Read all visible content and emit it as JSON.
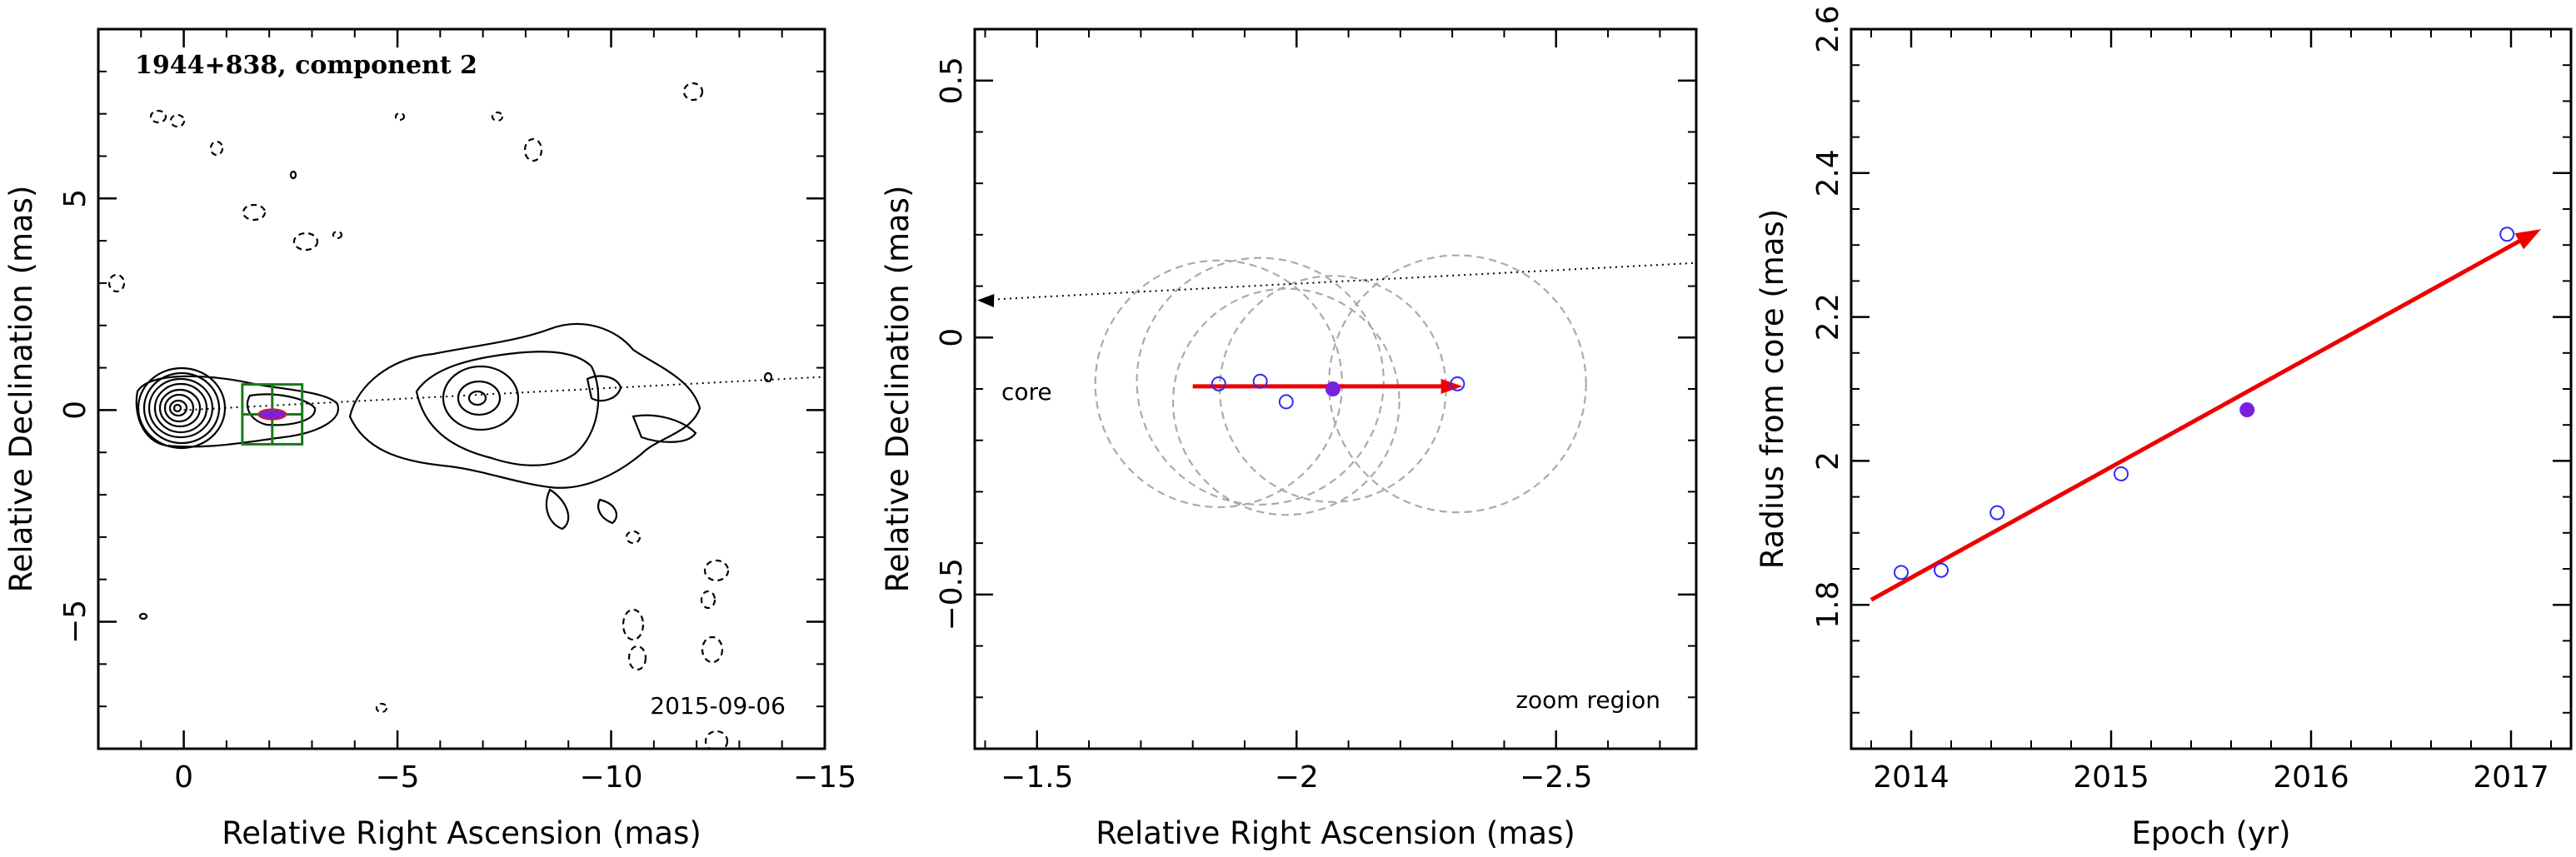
{
  "chart_data": [
    {
      "type": "image",
      "title": "1944+838, component 2",
      "date_label": "2015-09-06",
      "xlabel": "Relative Right Ascension (mas)",
      "ylabel": "Relative Declination (mas)",
      "xlim": [
        2,
        -15
      ],
      "ylim": [
        -8,
        9
      ],
      "xticks": [
        0,
        -5,
        -10,
        -15
      ],
      "yticks": [
        -5,
        0,
        5
      ],
      "component_position": [
        -2.07,
        -0.1
      ],
      "jet_axis_pa_deg": 93
    },
    {
      "type": "scatter",
      "annotations": [
        "core",
        "zoom region"
      ],
      "xlabel": "Relative Right Ascension (mas)",
      "ylabel": "Relative Declination (mas)",
      "xlim": [
        -1.38,
        -2.77
      ],
      "ylim": [
        -0.8,
        0.6
      ],
      "xticks": [
        -1.5,
        -2,
        -2.5
      ],
      "yticks": [
        -0.5,
        0,
        0.5
      ],
      "points_open": [
        {
          "x": -1.85,
          "y": -0.09
        },
        {
          "x": -1.93,
          "y": -0.085
        },
        {
          "x": -1.98,
          "y": -0.125
        },
        {
          "x": -2.31,
          "y": -0.09
        }
      ],
      "point_filled": {
        "x": -2.07,
        "y": -0.1
      },
      "circles": [
        {
          "x": -1.85,
          "y": -0.09,
          "r": 0.24
        },
        {
          "x": -1.93,
          "y": -0.085,
          "r": 0.24
        },
        {
          "x": -1.98,
          "y": -0.125,
          "r": 0.22
        },
        {
          "x": -2.07,
          "y": -0.1,
          "r": 0.22
        },
        {
          "x": -2.31,
          "y": -0.09,
          "r": 0.25
        }
      ],
      "velocity_vector": {
        "from": [
          -1.8,
          -0.095
        ],
        "to": [
          -2.32,
          -0.095
        ]
      }
    },
    {
      "type": "scatter",
      "xlabel": "Epoch (yr)",
      "ylabel": "Radius from core (mas)",
      "xlim": [
        2013.7,
        2017.3
      ],
      "ylim": [
        1.6,
        2.6
      ],
      "xticks": [
        2014,
        2015,
        2016,
        2017
      ],
      "yticks": [
        1.8,
        2,
        2.2,
        2.4,
        2.6
      ],
      "ytick_labels": [
        "1.8",
        "2",
        "2.2",
        "2.4",
        "2.6"
      ],
      "points_open": [
        {
          "x": 2013.95,
          "y": 1.845
        },
        {
          "x": 2014.15,
          "y": 1.848
        },
        {
          "x": 2014.43,
          "y": 1.928
        },
        {
          "x": 2015.05,
          "y": 1.982
        },
        {
          "x": 2016.98,
          "y": 2.315
        }
      ],
      "point_filled": {
        "x": 2015.68,
        "y": 2.071
      },
      "fit_arrow": {
        "from": [
          2013.8,
          1.807
        ],
        "to": [
          2017.15,
          2.322
        ]
      }
    }
  ],
  "colors": {
    "open_marker": "#2b2bff",
    "filled_marker": "#7a1fe0",
    "arrow": "#ee0000",
    "box": "#1a7a1a",
    "circles": "#aaaaaa"
  }
}
